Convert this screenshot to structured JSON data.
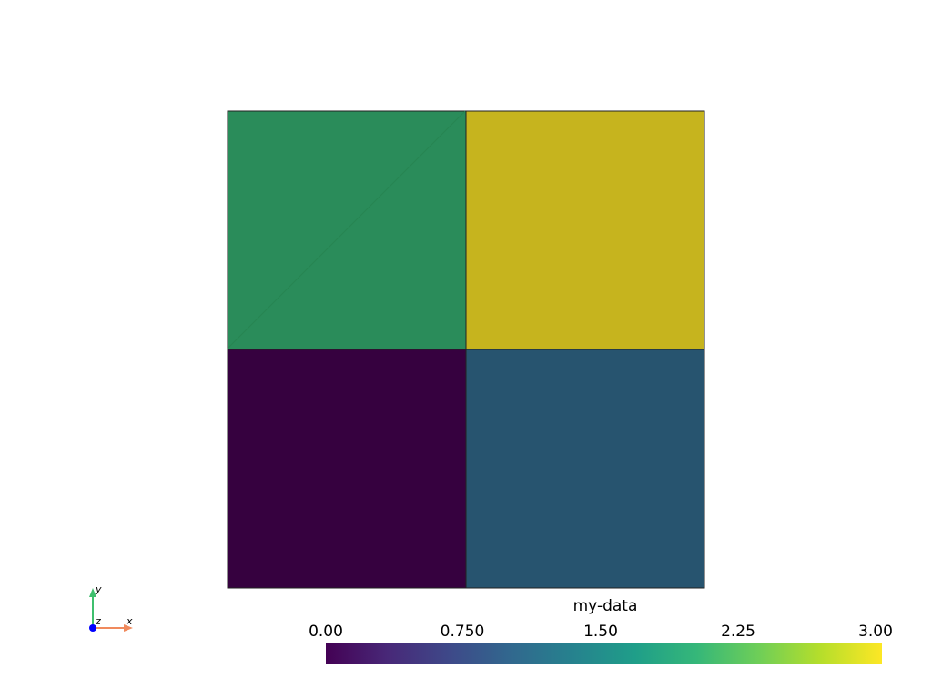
{
  "chart_data": {
    "type": "heatmap",
    "title": "",
    "rows": 2,
    "cols": 2,
    "values": [
      [
        2,
        3
      ],
      [
        0,
        1
      ]
    ],
    "cell_colors": [
      [
        "#2a8c5a",
        "#c6b41e"
      ],
      [
        "#36013f",
        "#27546f"
      ]
    ],
    "colorbar": {
      "title": "my-data",
      "range": [
        0,
        3
      ],
      "ticks": [
        "0.00",
        "0.750",
        "1.50",
        "2.25",
        "3.00"
      ],
      "colormap": "viridis"
    }
  },
  "axes_widget": {
    "x": "x",
    "y": "y",
    "z": "z",
    "x_color": "#f08a5d",
    "y_color": "#3fbf6e",
    "z_color": "#0000ff"
  }
}
